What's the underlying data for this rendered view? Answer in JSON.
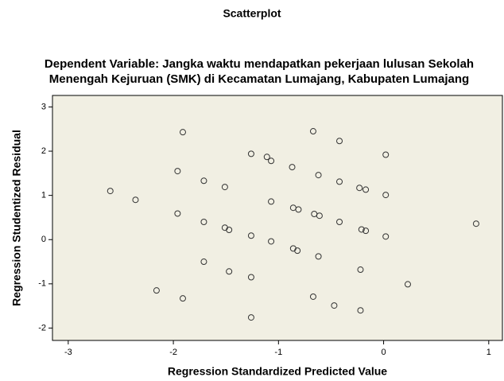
{
  "chart_data": {
    "type": "scatter",
    "title": "Scatterplot",
    "subtitle": [
      "Dependent Variable: Jangka waktu mendapatkan pekerjaan lulusan Sekolah",
      "Menengah Kejuruan (SMK) di Kecamatan Lumajang, Kabupaten Lumajang"
    ],
    "x_label": "Regression Standardized Predicted Value",
    "y_label": "Regression Studentized Residual",
    "xlim": [
      -3.15,
      1.13
    ],
    "ylim": [
      -2.28,
      3.26
    ],
    "xticks": [
      -3,
      -2,
      -1,
      0,
      1
    ],
    "yticks": [
      -2,
      -1,
      0,
      1,
      2,
      3
    ],
    "color": "#333333",
    "background": "#f1efe3",
    "x": [
      -1.91,
      -0.67,
      -0.42,
      0.02,
      -1.26,
      -1.11,
      -1.07,
      -0.87,
      -1.96,
      -1.71,
      -0.62,
      -0.42,
      -1.51,
      -2.6,
      -0.23,
      -0.17,
      0.02,
      -2.36,
      -1.07,
      -0.86,
      -0.81,
      -0.66,
      -0.61,
      -1.96,
      -0.42,
      -1.71,
      -1.51,
      -1.47,
      0.88,
      -0.21,
      -0.17,
      -1.26,
      0.02,
      -1.07,
      -0.86,
      -0.82,
      -1.71,
      -0.62,
      -1.47,
      -0.22,
      -1.26,
      0.23,
      -2.16,
      -0.67,
      -1.91,
      -0.47,
      -0.22,
      -1.26
    ],
    "y": [
      2.43,
      2.45,
      2.23,
      1.92,
      1.94,
      1.87,
      1.78,
      1.64,
      1.55,
      1.33,
      1.46,
      1.31,
      1.19,
      1.1,
      1.17,
      1.13,
      1.01,
      0.9,
      0.86,
      0.72,
      0.68,
      0.58,
      0.54,
      0.59,
      0.4,
      0.4,
      0.27,
      0.22,
      0.36,
      0.23,
      0.2,
      0.09,
      0.07,
      -0.04,
      -0.2,
      -0.25,
      -0.5,
      -0.38,
      -0.72,
      -0.68,
      -0.85,
      -1.01,
      -1.15,
      -1.29,
      -1.33,
      -1.49,
      -1.6,
      -1.76
    ]
  }
}
